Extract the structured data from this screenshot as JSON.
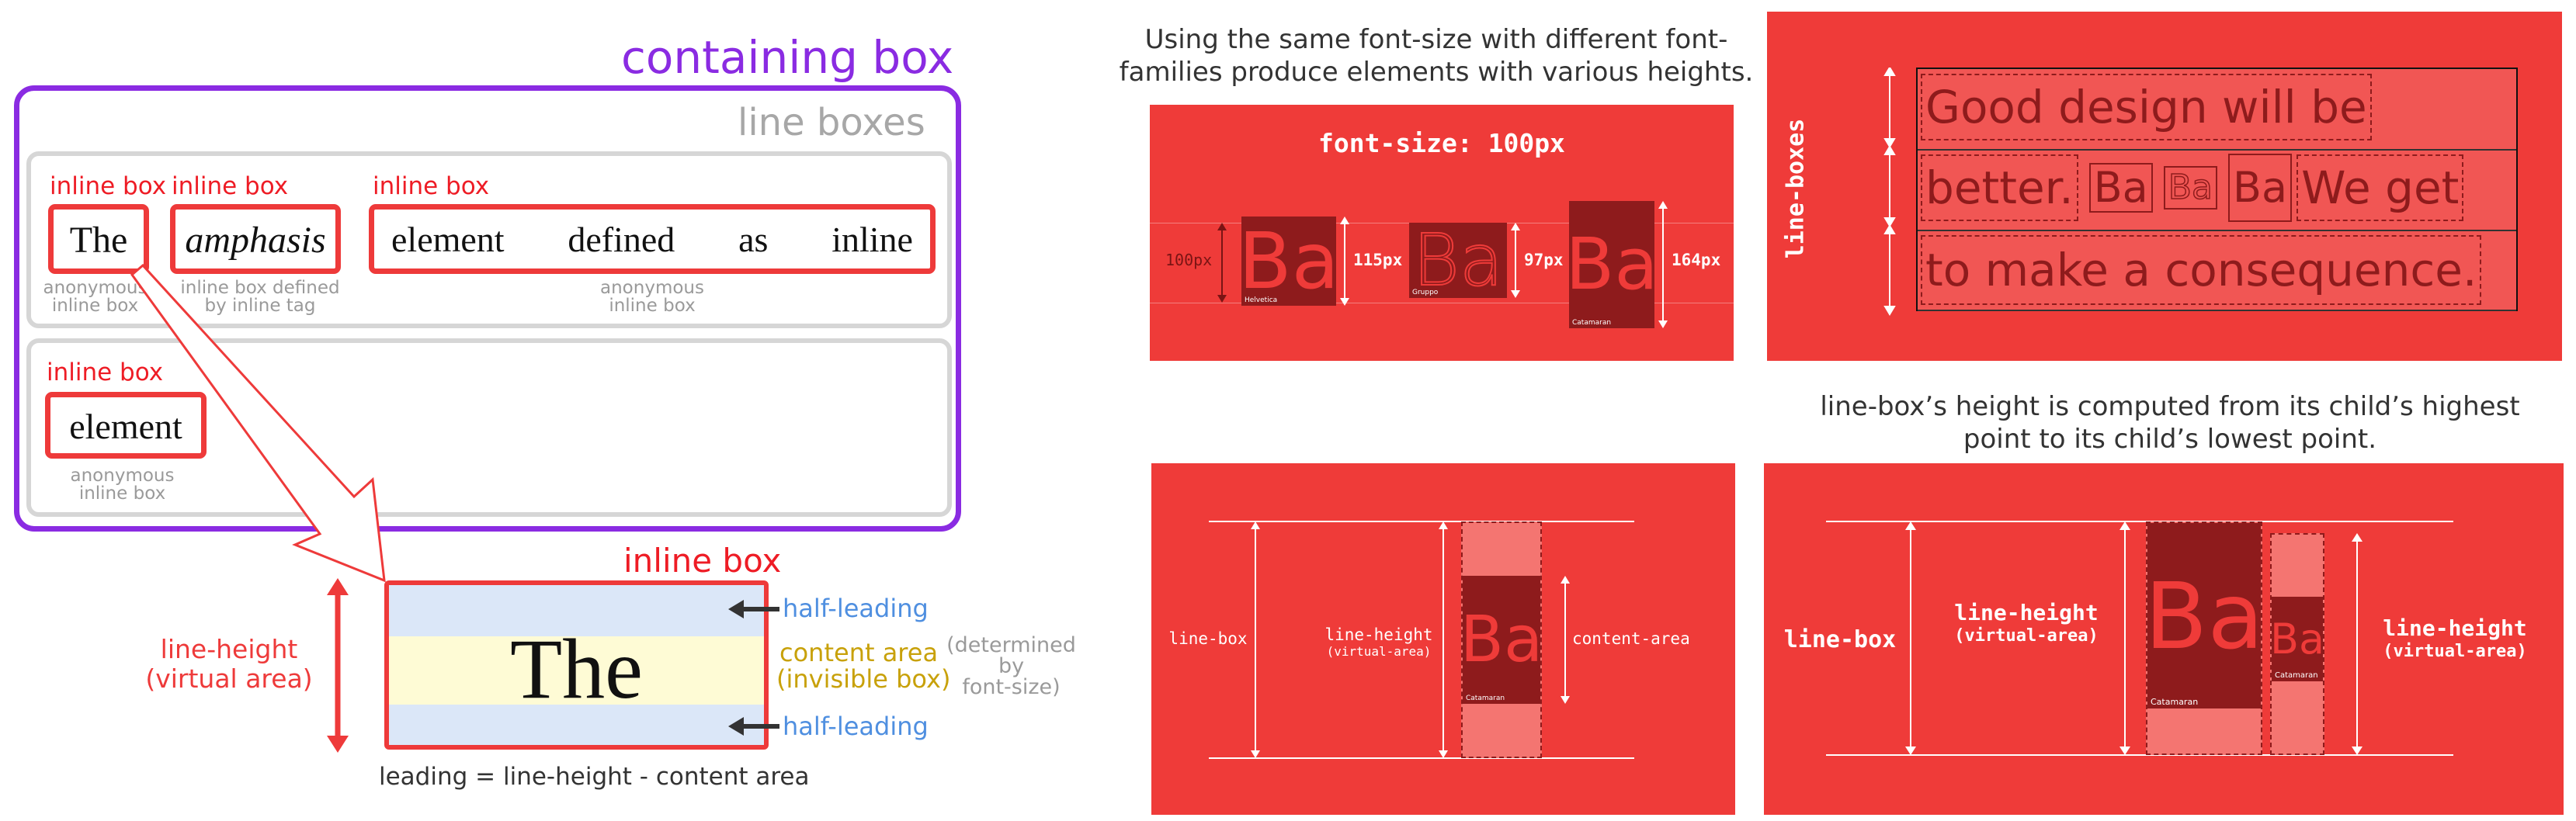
{
  "left_diagram": {
    "containing_box_label": "containing box",
    "line_boxes_label": "line boxes",
    "inline_box_label": "inline box",
    "line1": {
      "the": "The",
      "amphasis": "amphasis",
      "element_words": [
        "element",
        "defined",
        "as",
        "inline"
      ],
      "note_anon_1": "anonymous",
      "note_anon_2": "inline box",
      "note_tag_1": "inline box defined",
      "note_tag_2": "by inline tag",
      "note_anon3_1": "anonymous",
      "note_anon3_2": "inline box"
    },
    "line2": {
      "element": "element",
      "note_1": "anonymous",
      "note_2": "inline box"
    },
    "zoom": {
      "the": "The",
      "line_height_1": "line-height",
      "line_height_2": "(virtual area)",
      "half_leading_top": "half-leading",
      "half_leading_bottom": "half-leading",
      "content_area_1": "content area",
      "content_area_2": "(invisible box)",
      "determined_1": "(determined",
      "determined_2": "by",
      "determined_3": "font-size)",
      "formula": "leading = line-height - content area"
    }
  },
  "panel_a": {
    "caption_1": "Using the same font-size with different font-",
    "caption_2": "families produce elements with various heights.",
    "title": "font-size: 100px",
    "guide_label": "100px",
    "glyphs": [
      {
        "text": "Ba",
        "font": "Helvetica",
        "height_label": "115px"
      },
      {
        "text": "Ba",
        "font": "Gruppo",
        "height_label": "97px"
      },
      {
        "text": "Ba",
        "font": "Catamaran",
        "height_label": "164px"
      }
    ]
  },
  "panel_b": {
    "side_label": "line-boxes",
    "line1": "Good design will be",
    "line2_a": "better.",
    "ba": "Ba",
    "line2_b": "We get",
    "line3": "to make a consequence."
  },
  "panel_c": {
    "line_box": "line-box",
    "line_height_1": "line-height",
    "line_height_2": "(virtual-area)",
    "content_area": "content-area",
    "glyph": "Ba",
    "font": "Catamaran"
  },
  "panel_d": {
    "caption_1": "line-box’s height is computed from its child’s highest",
    "caption_2": "point to its child’s lowest point.",
    "line_box": "line-box",
    "lh_left_1": "line-height",
    "lh_left_2": "(virtual-area)",
    "lh_right_1": "line-height",
    "lh_right_2": "(virtual-area)",
    "glyph_big": "Ba",
    "glyph_small": "Ba",
    "font_big": "Catamaran",
    "font_small": "Catamaran"
  },
  "colors": {
    "purple": "#8a2be2",
    "red": "#ee1c25",
    "panel_red": "#ef3b39",
    "dark_red": "#8e1b1c",
    "blue": "#4f8fe0",
    "gold": "#c8a10a"
  }
}
